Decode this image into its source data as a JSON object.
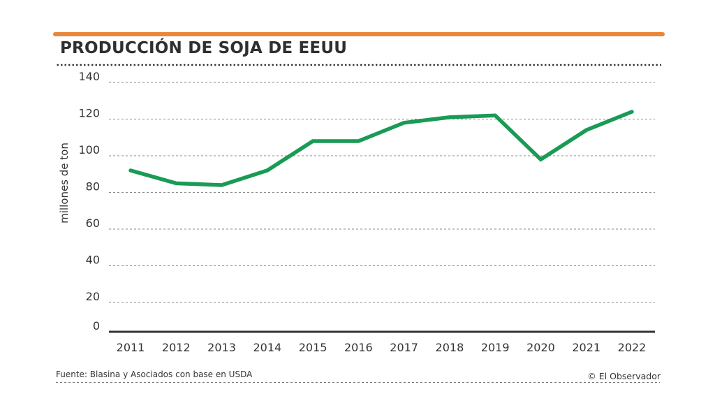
{
  "header": {
    "title": "PRODUCCIÓN DE SOJA DE EEUU",
    "accent_color": "#E8873A"
  },
  "footer": {
    "source": "Fuente: Blasina y Asociados con base en USDA",
    "credit": "© El Observador"
  },
  "chart_data": {
    "type": "line",
    "title": "PRODUCCIÓN DE SOJA DE EEUU",
    "xlabel": "",
    "ylabel": "millones de ton",
    "ylim": [
      0,
      140
    ],
    "yticks": [
      0,
      20,
      40,
      60,
      80,
      100,
      120,
      140
    ],
    "ytick_labels": [
      "0",
      "20",
      "40",
      "60",
      "80",
      "100",
      "120",
      "140"
    ],
    "grid": true,
    "legend": "none",
    "categories": [
      "2011",
      "2012",
      "2013",
      "2014",
      "2015",
      "2016",
      "2017",
      "2018",
      "2019",
      "2020",
      "2021",
      "2022"
    ],
    "series": [
      {
        "name": "Producción de soja",
        "color": "#1A9B55",
        "values": [
          92,
          85,
          84,
          92,
          108,
          108,
          118,
          121,
          122,
          98,
          114,
          124
        ]
      }
    ]
  }
}
